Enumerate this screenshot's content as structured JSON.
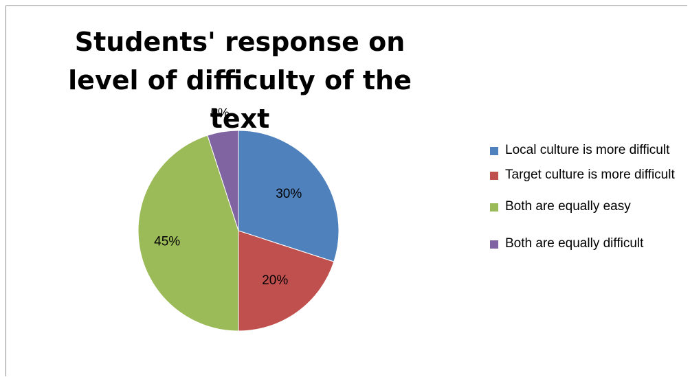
{
  "chart_data": {
    "type": "pie",
    "title": "Students' response on level of difficulty of the text",
    "categories": [
      "Local culture is more difficult",
      "Target culture is more difficult",
      "Both are equally easy",
      "Both are equally difficult"
    ],
    "values": [
      30,
      20,
      45,
      5
    ],
    "data_labels": [
      "30%",
      "20%",
      "45%",
      "5%"
    ],
    "colors": [
      "#4f81bd",
      "#c0504d",
      "#9bbb59",
      "#8064a2"
    ],
    "legend_position": "right"
  }
}
